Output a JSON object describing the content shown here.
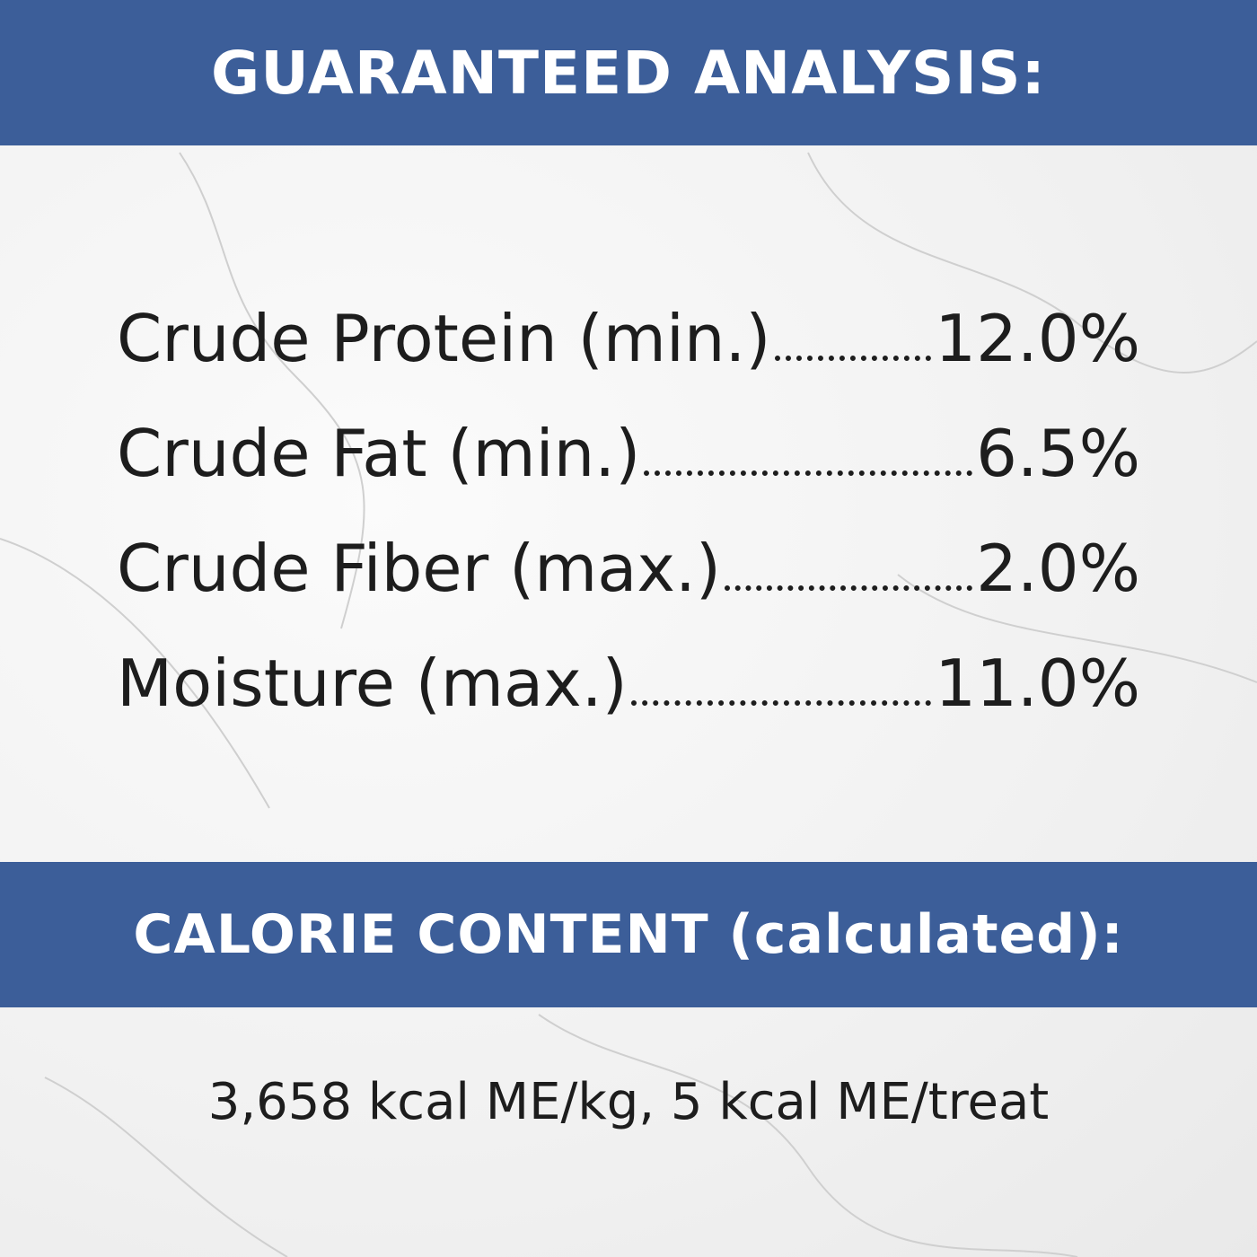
{
  "header": {
    "title": "GUARANTEED ANALYSIS:"
  },
  "analysis": {
    "rows": [
      {
        "label": "Crude Protein (min.)",
        "value": "12.0%"
      },
      {
        "label": "Crude Fat (min.)",
        "value": "6.5%"
      },
      {
        "label": "Crude Fiber (max.)",
        "value": "2.0%"
      },
      {
        "label": "Moisture (max.)",
        "value": "11.0%"
      }
    ]
  },
  "calorie": {
    "title": "CALORIE CONTENT (calculated):",
    "text": "3,658 kcal ME/kg, 5 kcal ME/treat"
  }
}
